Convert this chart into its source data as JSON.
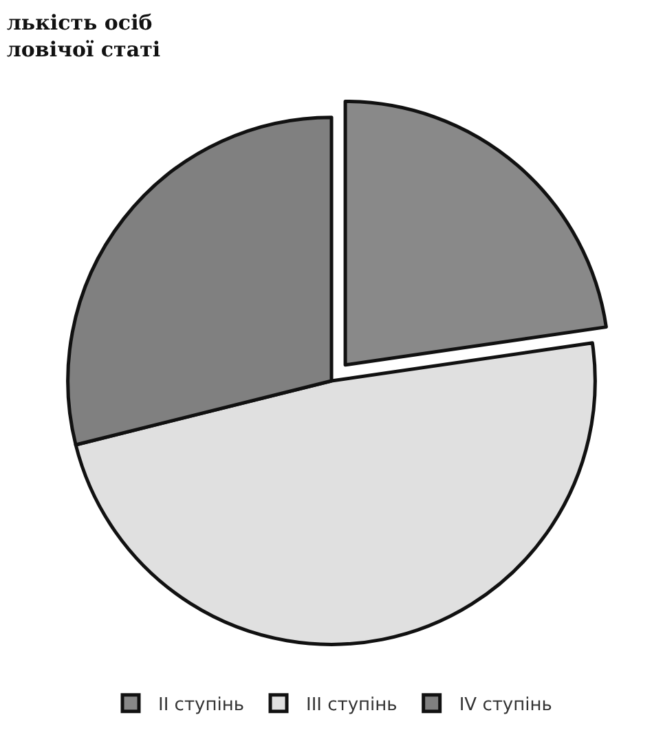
{
  "chart_data": {
    "type": "pie",
    "title": "лькість осіб\nловічої статі",
    "categories": [
      "II ступінь",
      "III ступінь",
      "IV ступінь"
    ],
    "values": [
      22.7,
      48.4,
      28.9
    ],
    "colors": [
      "#898989",
      "#e0e0e0",
      "#808080"
    ],
    "legend": "bottom"
  }
}
